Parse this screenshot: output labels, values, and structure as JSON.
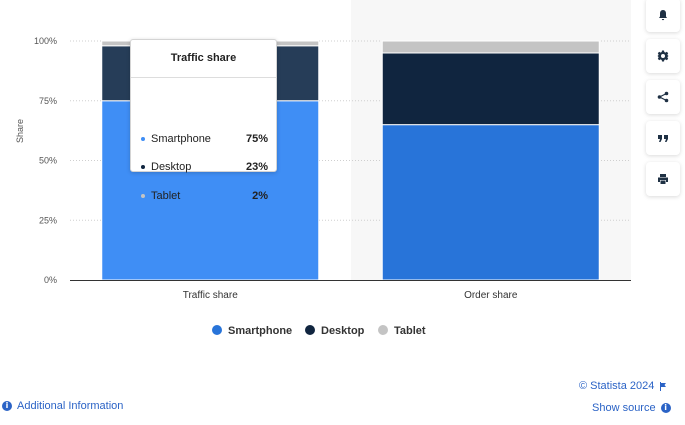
{
  "chart_data": {
    "type": "bar",
    "stacked": true,
    "percent_axis": true,
    "categories": [
      "Traffic share",
      "Order share"
    ],
    "series": [
      {
        "name": "Smartphone",
        "values": [
          75,
          65
        ],
        "color": "#2874d9"
      },
      {
        "name": "Desktop",
        "values": [
          23,
          30
        ],
        "color": "#10253f"
      },
      {
        "name": "Tablet",
        "values": [
          2,
          5
        ],
        "color": "#c4c4c4"
      }
    ],
    "ylabel": "Share",
    "ylim": [
      0,
      100
    ],
    "yticks": [
      "0%",
      "25%",
      "50%",
      "75%",
      "100%"
    ],
    "grid": true,
    "legend_position": "bottom"
  },
  "tooltip": {
    "title": "Traffic share",
    "rows": [
      {
        "name": "Smartphone",
        "value": "75%",
        "color": "#2874d9"
      },
      {
        "name": "Desktop",
        "value": "23%",
        "color": "#10253f"
      },
      {
        "name": "Tablet",
        "value": "2%",
        "color": "#c4c4c4"
      }
    ]
  },
  "sidebar": {
    "icons": [
      "bell-icon",
      "gear-icon",
      "share-icon",
      "quote-icon",
      "print-icon"
    ]
  },
  "footer": {
    "copyright": "© Statista 2024",
    "additional_info": "Additional Information",
    "show_source": "Show source",
    "info_glyph": "i"
  },
  "colors": {
    "hover_bar": "#3f8ef5",
    "hover_desktop": "#263d58",
    "link": "#2b63c6"
  }
}
